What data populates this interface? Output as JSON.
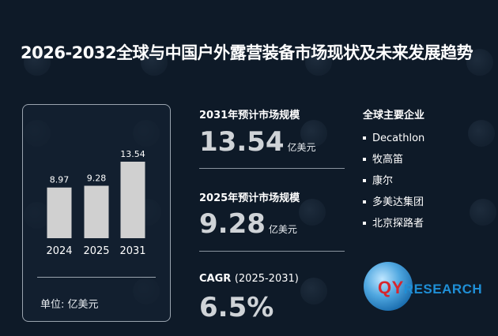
{
  "title": "2026-2032全球与中国户外露营装备市场现状及未来发展趋势",
  "chart_data": {
    "type": "bar",
    "categories": [
      "2024",
      "2025",
      "2031"
    ],
    "values": [
      8.97,
      9.28,
      13.54
    ],
    "value_labels": [
      "8.97",
      "9.28",
      "13.54"
    ],
    "unit": "单位: 亿美元"
  },
  "stats": {
    "market_2031": {
      "label": "2031年预计市场规模",
      "value": "13.54",
      "unit": "亿美元"
    },
    "market_2025": {
      "label": "2025年预计市场规模",
      "value": "9.28",
      "unit": "亿美元"
    },
    "cagr": {
      "label": "CAGR",
      "period": "(2025-2031)",
      "value": "6.5%"
    }
  },
  "companies": {
    "title": "全球主要企业",
    "items": [
      "Decathlon",
      "牧高笛",
      "康尔",
      "多美达集团",
      "北京探路者"
    ]
  },
  "logo": {
    "q": "QY",
    "rest": "RESEARCH"
  },
  "colors": {
    "background": "#0e1a28",
    "bar": "#d0d0d0",
    "accent_red": "#d7262d",
    "accent_blue": "#1f8fd6"
  },
  "icons": [
    "qyresearch-logo-icon",
    "bullet-icon"
  ]
}
